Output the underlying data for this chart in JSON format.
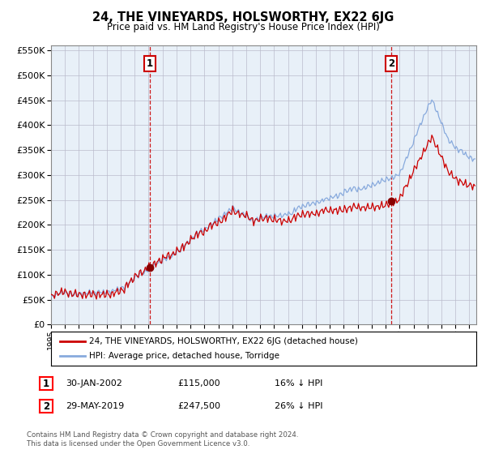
{
  "title": "24, THE VINEYARDS, HOLSWORTHY, EX22 6JG",
  "subtitle": "Price paid vs. HM Land Registry's House Price Index (HPI)",
  "hpi_color": "#88aadd",
  "price_color": "#cc0000",
  "marker_color": "#880000",
  "vline_color": "#cc0000",
  "bg_color": "#ffffff",
  "chart_bg_color": "#e8f0f8",
  "grid_color": "#bbbbcc",
  "ylim": [
    0,
    560000
  ],
  "yticks": [
    0,
    50000,
    100000,
    150000,
    200000,
    250000,
    300000,
    350000,
    400000,
    450000,
    500000,
    550000
  ],
  "xlim_start": 1995.0,
  "xlim_end": 2025.5,
  "sale1_x": 2002.08,
  "sale1_y": 115000,
  "sale2_x": 2019.42,
  "sale2_y": 247500,
  "legend_line1": "24, THE VINEYARDS, HOLSWORTHY, EX22 6JG (detached house)",
  "legend_line2": "HPI: Average price, detached house, Torridge",
  "sale1_date": "30-JAN-2002",
  "sale1_price": "£115,000",
  "sale1_hpi": "16% ↓ HPI",
  "sale2_date": "29-MAY-2019",
  "sale2_price": "£247,500",
  "sale2_hpi": "26% ↓ HPI",
  "footnote": "Contains HM Land Registry data © Crown copyright and database right 2024.\nThis data is licensed under the Open Government Licence v3.0."
}
